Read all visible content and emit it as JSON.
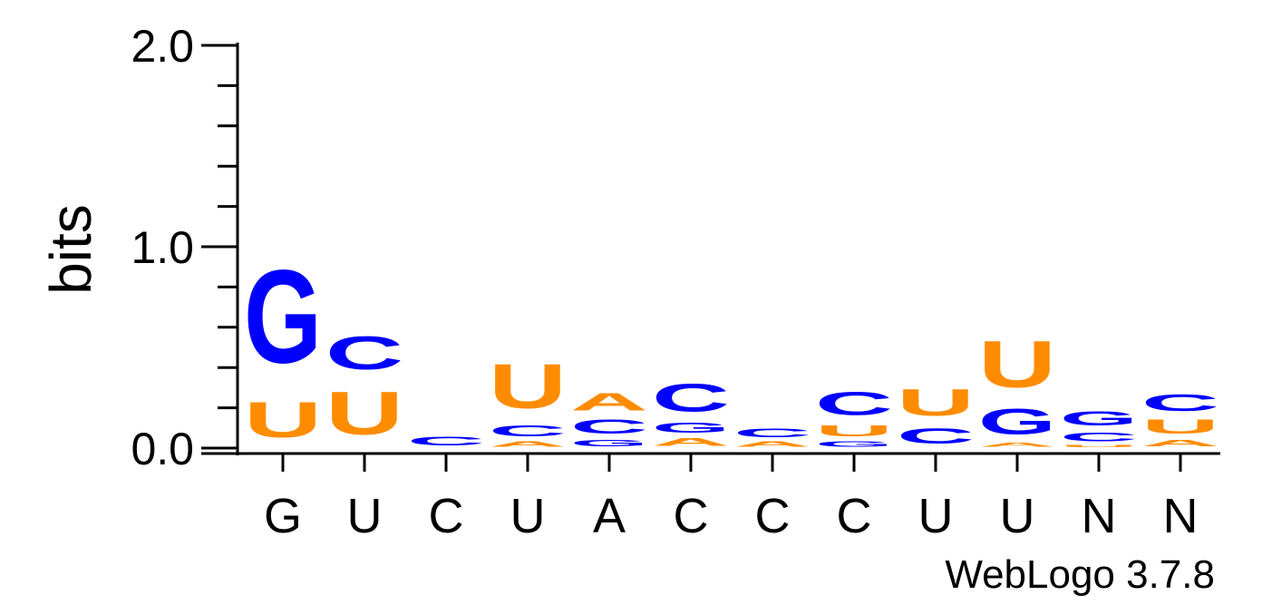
{
  "chart_data": {
    "type": "sequence-logo",
    "ylabel": "bits",
    "ylim": [
      0,
      2
    ],
    "yticks": [
      "0.0",
      "1.0",
      "2.0"
    ],
    "x_tick_labels": [
      "G",
      "U",
      "C",
      "U",
      "A",
      "C",
      "C",
      "C",
      "U",
      "U",
      "N",
      "N"
    ],
    "colors": {
      "G": "#0000ff",
      "C": "#0000ff",
      "U": "#ff8c00",
      "A": "#ff8c00"
    },
    "positions": [
      {
        "letters": [
          {
            "letter": "U",
            "bits": 0.28
          },
          {
            "letter": "G",
            "bits": 0.74
          }
        ]
      },
      {
        "letters": [
          {
            "letter": "U",
            "bits": 0.34
          },
          {
            "letter": "C",
            "bits": 0.26
          }
        ]
      },
      {
        "letters": [
          {
            "letter": "C",
            "bits": 0.07
          }
        ]
      },
      {
        "letters": [
          {
            "letter": "A",
            "bits": 0.04
          },
          {
            "letter": "C",
            "bits": 0.09
          },
          {
            "letter": "U",
            "bits": 0.35
          }
        ]
      },
      {
        "letters": [
          {
            "letter": "G",
            "bits": 0.05
          },
          {
            "letter": "C",
            "bits": 0.11
          },
          {
            "letter": "A",
            "bits": 0.14
          }
        ]
      },
      {
        "letters": [
          {
            "letter": "A",
            "bits": 0.06
          },
          {
            "letter": "G",
            "bits": 0.08
          },
          {
            "letter": "C",
            "bits": 0.22
          }
        ]
      },
      {
        "letters": [
          {
            "letter": "A",
            "bits": 0.04
          },
          {
            "letter": "C",
            "bits": 0.07
          }
        ]
      },
      {
        "letters": [
          {
            "letter": "G",
            "bits": 0.04
          },
          {
            "letter": "U",
            "bits": 0.09
          },
          {
            "letter": "C",
            "bits": 0.18
          }
        ]
      },
      {
        "letters": [
          {
            "letter": "C",
            "bits": 0.12
          },
          {
            "letter": "U",
            "bits": 0.21
          }
        ]
      },
      {
        "letters": [
          {
            "letter": "A",
            "bits": 0.03
          },
          {
            "letter": "G",
            "bits": 0.2
          },
          {
            "letter": "U",
            "bits": 0.37
          }
        ]
      },
      {
        "letters": [
          {
            "letter": "U",
            "bits": 0.02
          },
          {
            "letter": "C",
            "bits": 0.07
          },
          {
            "letter": "G",
            "bits": 0.11
          }
        ]
      },
      {
        "letters": [
          {
            "letter": "A",
            "bits": 0.05
          },
          {
            "letter": "U",
            "bits": 0.11
          },
          {
            "letter": "C",
            "bits": 0.13
          }
        ]
      }
    ]
  },
  "credit": "WebLogo 3.7.8"
}
